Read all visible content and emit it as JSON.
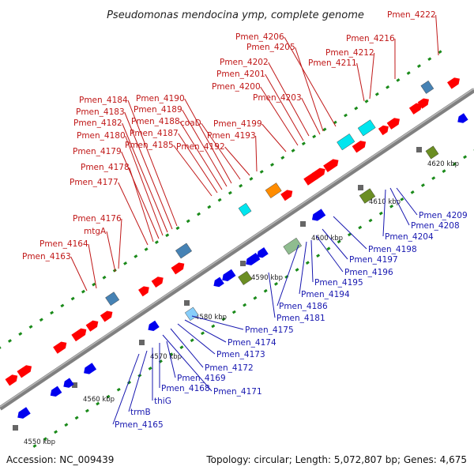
{
  "title": "Pseudomonas mendocina ymp, complete genome",
  "accession": "Accession: NC_009439",
  "topology": "Topology: circular; Length: 5,072,807 bp; Genes: 4,675",
  "colors": {
    "forward_gene": "#ff0000",
    "reverse_gene": "#0000ee",
    "forward_label": "#c01818",
    "reverse_label": "#1818b0",
    "backbone": "#808080",
    "tick": "#1a8a1a"
  },
  "tick_labels": [
    "4550 kbp",
    "4560 kbp",
    "4570 kbp",
    "4580 kbp",
    "4590 kbp",
    "4600 kbp",
    "4610 kbp",
    "4620 kbp"
  ],
  "forward_labels": [
    "Pmen_4222",
    "Pmen_4216",
    "Pmen_4212",
    "Pmen_4211",
    "Pmen_4206",
    "Pmen_4205",
    "Pmen_4202",
    "Pmen_4201",
    "Pmen_4200",
    "Pmen_4203",
    "Pmen_4199",
    "Pmen_4193",
    "Pmen_4192",
    "coaD",
    "Pmen_4190",
    "Pmen_4189",
    "Pmen_4188",
    "Pmen_4187",
    "Pmen_4185",
    "Pmen_4184",
    "Pmen_4183",
    "Pmen_4182",
    "Pmen_4180",
    "Pmen_4179",
    "Pmen_4178",
    "Pmen_4177",
    "Pmen_4176",
    "mtgA",
    "Pmen_4164",
    "Pmen_4163"
  ],
  "reverse_labels": [
    "Pmen_4209",
    "Pmen_4208",
    "Pmen_4204",
    "Pmen_4198",
    "Pmen_4197",
    "Pmen_4196",
    "Pmen_4195",
    "Pmen_4194",
    "Pmen_4186",
    "Pmen_4181",
    "Pmen_4175",
    "Pmen_4174",
    "Pmen_4173",
    "Pmen_4172",
    "Pmen_4171",
    "Pmen_4169",
    "Pmen_4168",
    "thiG",
    "trmB",
    "Pmen_4165"
  ]
}
